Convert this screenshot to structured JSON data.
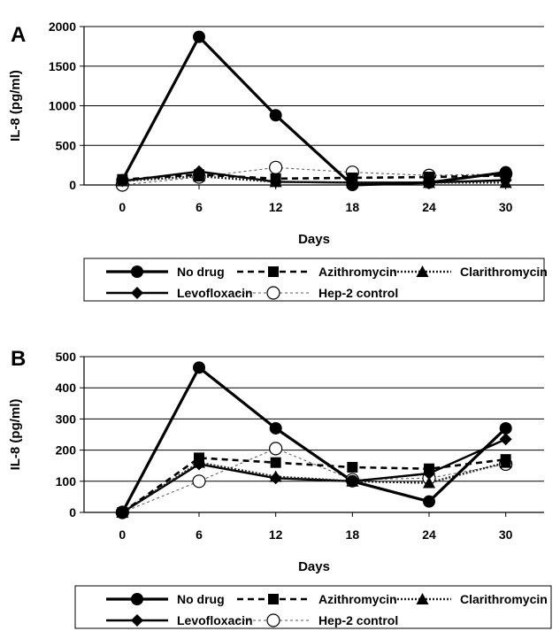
{
  "chart_data": [
    {
      "type": "line",
      "panel_label": "A",
      "x": [
        0,
        6,
        12,
        18,
        24,
        30
      ],
      "xlabel": "Days",
      "ylabel": "IL-8 (pg/ml)",
      "ylim": [
        0,
        2000
      ],
      "yticks": [
        0,
        500,
        1000,
        1500,
        2000
      ],
      "grid": "horizontal",
      "legend_position": "bottom",
      "series": [
        {
          "name": "No drug",
          "marker": "circle",
          "style": "solid-thick",
          "values": [
            60,
            1870,
            880,
            0,
            30,
            160
          ]
        },
        {
          "name": "Azithromycin",
          "marker": "square",
          "style": "dashed",
          "values": [
            70,
            130,
            80,
            90,
            100,
            120
          ]
        },
        {
          "name": "Clarithromycin",
          "marker": "triangle",
          "style": "dotted",
          "values": [
            50,
            110,
            40,
            30,
            30,
            30
          ]
        },
        {
          "name": "Levofloxacin",
          "marker": "diamond",
          "style": "solid",
          "values": [
            50,
            170,
            40,
            30,
            30,
            60
          ]
        },
        {
          "name": "Hep-2 control",
          "marker": "open-circle",
          "style": "thin-dotted",
          "values": [
            0,
            100,
            220,
            160,
            120,
            140
          ]
        }
      ]
    },
    {
      "type": "line",
      "panel_label": "B",
      "x": [
        0,
        6,
        12,
        18,
        24,
        30
      ],
      "xlabel": "Days",
      "ylabel": "IL-8 (pg/ml)",
      "ylim": [
        0,
        500
      ],
      "yticks": [
        0,
        100,
        200,
        300,
        400,
        500
      ],
      "grid": "horizontal",
      "legend_position": "bottom",
      "series": [
        {
          "name": "No drug",
          "marker": "circle",
          "style": "solid-thick",
          "values": [
            0,
            465,
            270,
            100,
            35,
            270
          ]
        },
        {
          "name": "Azithromycin",
          "marker": "square",
          "style": "dashed",
          "values": [
            0,
            175,
            160,
            145,
            140,
            170
          ]
        },
        {
          "name": "Clarithromycin",
          "marker": "triangle",
          "style": "dotted",
          "values": [
            0,
            160,
            115,
            100,
            95,
            160
          ]
        },
        {
          "name": "Levofloxacin",
          "marker": "diamond",
          "style": "solid",
          "values": [
            0,
            155,
            110,
            100,
            125,
            235
          ]
        },
        {
          "name": "Hep-2 control",
          "marker": "open-circle",
          "style": "thin-dotted",
          "values": [
            0,
            100,
            205,
            105,
            110,
            155
          ]
        }
      ]
    }
  ]
}
